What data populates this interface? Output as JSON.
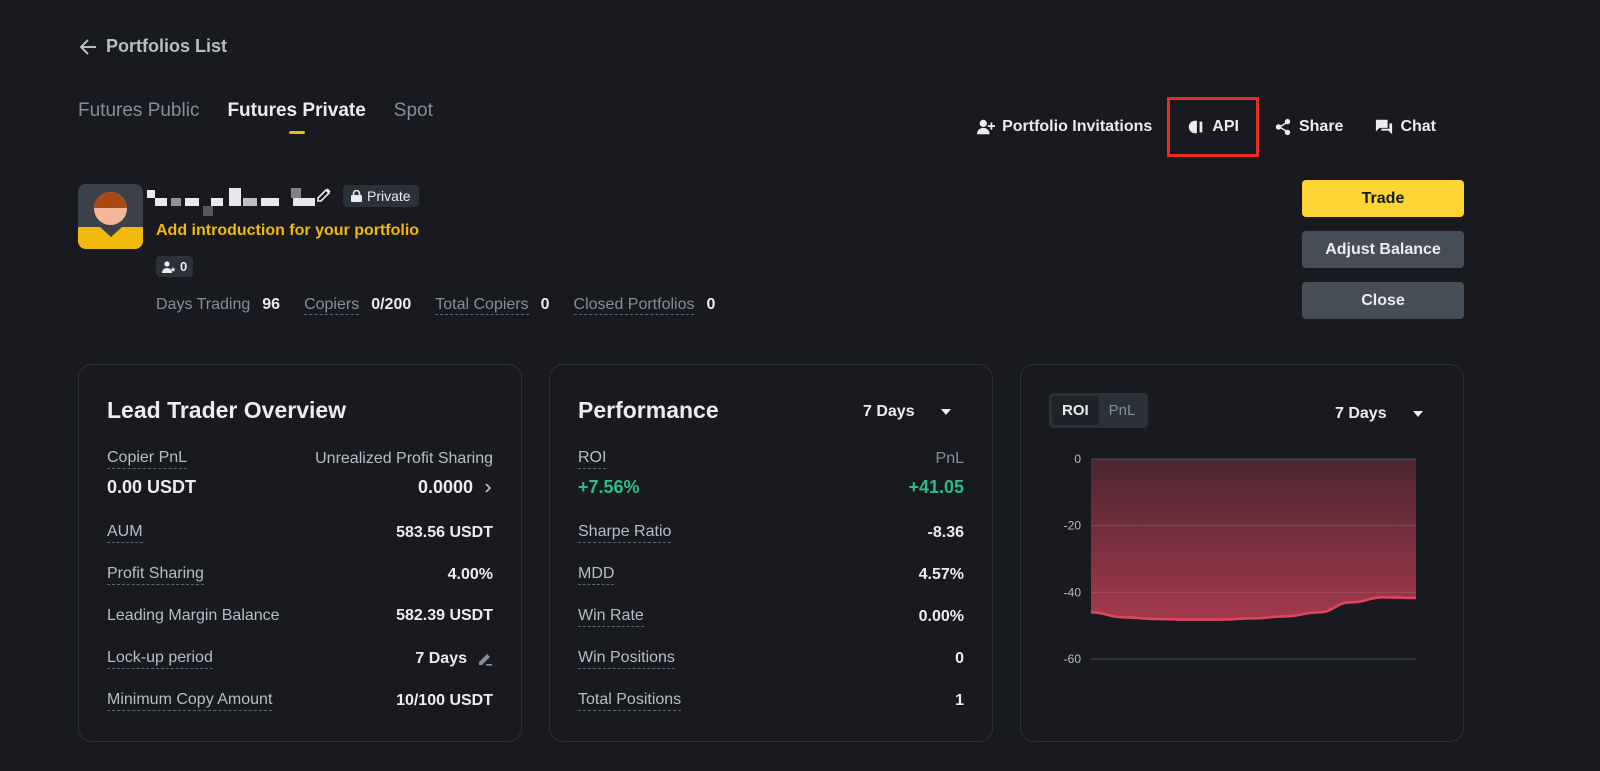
{
  "back": {
    "label": "Portfolios List"
  },
  "tabs": [
    {
      "label": "Futures Public"
    },
    {
      "label": "Futures Private"
    },
    {
      "label": "Spot"
    }
  ],
  "toplinks": {
    "invitations": "Portfolio Invitations",
    "api": "API",
    "share": "Share",
    "chat": "Chat"
  },
  "portfolio": {
    "badge": "Private",
    "intro": "Add introduction for your portfolio",
    "copier_count": "0"
  },
  "stats": [
    {
      "label": "Days Trading",
      "value": "96"
    },
    {
      "label": "Copiers",
      "value": "0/200"
    },
    {
      "label": "Total Copiers",
      "value": "0"
    },
    {
      "label": "Closed Portfolios",
      "value": "0"
    }
  ],
  "actions": {
    "trade": "Trade",
    "adjust": "Adjust Balance",
    "close": "Close"
  },
  "overview": {
    "title": "Lead Trader Overview",
    "copier_pnl_label": "Copier PnL",
    "copier_pnl_value": "0.00 USDT",
    "unrealized_label": "Unrealized Profit Sharing",
    "unrealized_value": "0.0000",
    "aum_label": "AUM",
    "aum_value": "583.56 USDT",
    "profit_sharing_label": "Profit Sharing",
    "profit_sharing_value": "4.00%",
    "leading_margin_label": "Leading Margin Balance",
    "leading_margin_value": "582.39 USDT",
    "lockup_label": "Lock-up period",
    "lockup_value": "7 Days",
    "min_copy_label": "Minimum Copy Amount",
    "min_copy_value": "10/100 USDT"
  },
  "performance": {
    "title": "Performance",
    "period": "7 Days",
    "roi_label": "ROI",
    "roi_value": "+7.56%",
    "pnl_label": "PnL",
    "pnl_value": "+41.05",
    "sharpe_label": "Sharpe Ratio",
    "sharpe_value": "-8.36",
    "mdd_label": "MDD",
    "mdd_value": "4.57%",
    "winrate_label": "Win Rate",
    "winrate_value": "0.00%",
    "winpos_label": "Win Positions",
    "winpos_value": "0",
    "totalpos_label": "Total Positions",
    "totalpos_value": "1"
  },
  "roi_chart": {
    "seg_roi": "ROI",
    "seg_pnl": "PnL",
    "period": "7 Days"
  },
  "chart_data": {
    "type": "area",
    "title": "",
    "xlabel": "",
    "ylabel": "",
    "ylim": [
      -60,
      0
    ],
    "yticks": [
      "0",
      "-20",
      "-40",
      "-60"
    ],
    "yticks_values": [
      0,
      -20,
      -40,
      -60
    ],
    "x": [
      0,
      1,
      2,
      3,
      4,
      5,
      6,
      7,
      8,
      9,
      10
    ],
    "series": [
      {
        "name": "ROI",
        "values": [
          -46,
          -47.5,
          -48,
          -48.2,
          -48.2,
          -47.8,
          -47.2,
          -46,
          -43,
          -41.5,
          -41.7
        ]
      }
    ],
    "color": "#e0475e"
  }
}
